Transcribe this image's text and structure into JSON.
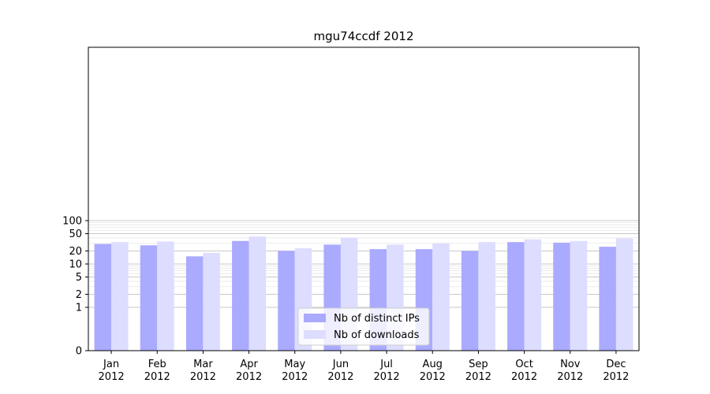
{
  "chart_data": {
    "type": "bar",
    "title": "mgu74ccdf 2012",
    "xlabel": "",
    "ylabel": "",
    "yscale": "symlog",
    "ylim": [
      0,
      120
    ],
    "yticks": [
      0,
      1,
      2,
      5,
      10,
      20,
      50,
      100
    ],
    "ytick_labels": [
      "0",
      "1",
      "2",
      "5",
      "10",
      "20",
      "50",
      "100"
    ],
    "grid": true,
    "legend_position": "bottom-center",
    "categories": [
      "Jan\n2012",
      "Feb\n2012",
      "Mar\n2012",
      "Apr\n2012",
      "May\n2012",
      "Jun\n2012",
      "Jul\n2012",
      "Aug\n2012",
      "Sep\n2012",
      "Oct\n2012",
      "Nov\n2012",
      "Dec\n2012"
    ],
    "series": [
      {
        "name": "Nb of distinct IPs",
        "color": "#aaaaff",
        "values": [
          29,
          27,
          15,
          34,
          20,
          28,
          22,
          22,
          20,
          32,
          31,
          25
        ]
      },
      {
        "name": "Nb of downloads",
        "color": "#ddddff",
        "values": [
          32,
          33,
          18,
          43,
          23,
          40,
          28,
          30,
          32,
          37,
          34,
          39
        ]
      }
    ]
  }
}
